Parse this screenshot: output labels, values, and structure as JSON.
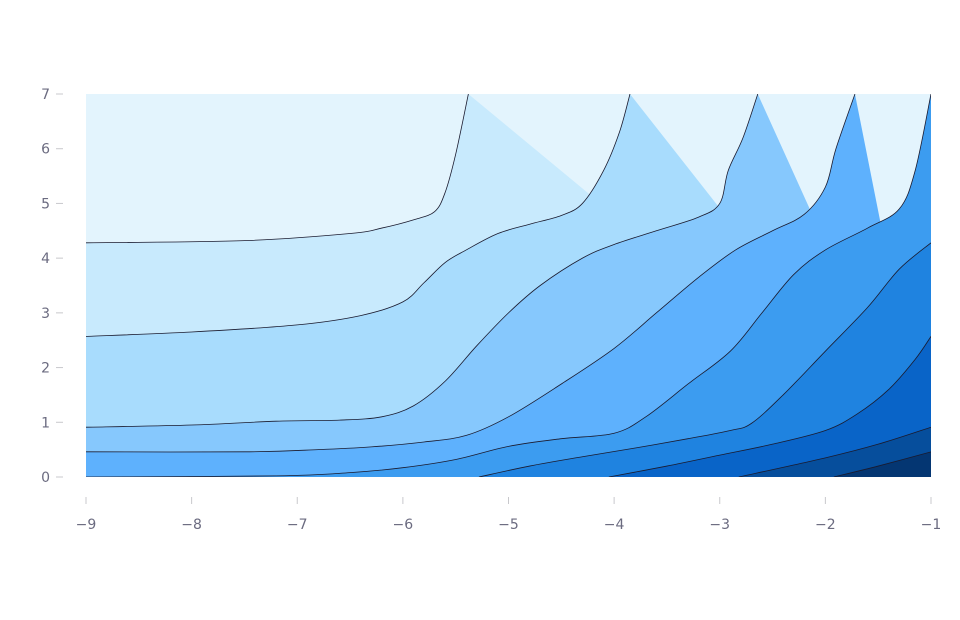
{
  "chart_data": {
    "type": "contour",
    "title": "",
    "xlabel": "",
    "ylabel": "",
    "xlim": [
      -9,
      -1
    ],
    "ylim": [
      0,
      7
    ],
    "x_ticks": [
      -9,
      -8,
      -7,
      -6,
      -5,
      -4,
      -3,
      -2,
      -1
    ],
    "y_ticks": [
      0,
      1,
      2,
      3,
      4,
      5,
      6,
      7
    ],
    "x_tick_labels": [
      "−9",
      "−8",
      "−7",
      "−6",
      "−5",
      "−4",
      "−3",
      "−2",
      "−1"
    ],
    "y_tick_labels": [
      "0",
      "1",
      "2",
      "3",
      "4",
      "5",
      "6",
      "7"
    ],
    "grid": false,
    "legend": "none",
    "colorscale": [
      "#e3f4fd",
      "#c8eafd",
      "#a8dcfd",
      "#86c8fd",
      "#5eb1fd",
      "#3c9cf0",
      "#1f83e0",
      "#0964c8",
      "#064e9c",
      "#043672"
    ],
    "contours": [
      {
        "level": 1,
        "points": [
          [
            -9,
            4.28
          ],
          [
            -7.5,
            4.32
          ],
          [
            -6.5,
            4.45
          ],
          [
            -6.2,
            4.55
          ],
          [
            -5.9,
            4.7
          ],
          [
            -5.7,
            4.85
          ],
          [
            -5.6,
            5.2
          ],
          [
            -5.5,
            5.9
          ],
          [
            -5.38,
            7
          ]
        ]
      },
      {
        "level": 2,
        "points": [
          [
            -9,
            2.57
          ],
          [
            -8,
            2.65
          ],
          [
            -7,
            2.78
          ],
          [
            -6.4,
            2.95
          ],
          [
            -6.0,
            3.2
          ],
          [
            -5.8,
            3.55
          ],
          [
            -5.6,
            3.92
          ],
          [
            -5.4,
            4.15
          ],
          [
            -5.1,
            4.45
          ],
          [
            -4.8,
            4.62
          ],
          [
            -4.5,
            4.78
          ],
          [
            -4.3,
            5.0
          ],
          [
            -4.1,
            5.6
          ],
          [
            -3.95,
            6.3
          ],
          [
            -3.85,
            7
          ]
        ]
      },
      {
        "level": 3,
        "points": [
          [
            -9,
            0.91
          ],
          [
            -8,
            0.95
          ],
          [
            -7.2,
            1.02
          ],
          [
            -6.6,
            1.04
          ],
          [
            -6.2,
            1.1
          ],
          [
            -5.9,
            1.3
          ],
          [
            -5.6,
            1.75
          ],
          [
            -5.3,
            2.4
          ],
          [
            -5.0,
            3.0
          ],
          [
            -4.7,
            3.5
          ],
          [
            -4.3,
            4.0
          ],
          [
            -4.0,
            4.25
          ],
          [
            -3.6,
            4.5
          ],
          [
            -3.2,
            4.75
          ],
          [
            -3.0,
            5.0
          ],
          [
            -2.92,
            5.6
          ],
          [
            -2.78,
            6.2
          ],
          [
            -2.64,
            7
          ]
        ]
      },
      {
        "level": 4,
        "points": [
          [
            -9,
            0.46
          ],
          [
            -7.5,
            0.46
          ],
          [
            -6.8,
            0.5
          ],
          [
            -6.3,
            0.55
          ],
          [
            -5.8,
            0.64
          ],
          [
            -5.4,
            0.76
          ],
          [
            -5.0,
            1.1
          ],
          [
            -4.5,
            1.7
          ],
          [
            -4.0,
            2.35
          ],
          [
            -3.6,
            3.0
          ],
          [
            -3.2,
            3.65
          ],
          [
            -2.85,
            4.15
          ],
          [
            -2.5,
            4.5
          ],
          [
            -2.2,
            4.8
          ],
          [
            -2.0,
            5.3
          ],
          [
            -1.9,
            6.0
          ],
          [
            -1.72,
            7
          ]
        ]
      },
      {
        "level": 5,
        "points": [
          [
            -9,
            0
          ],
          [
            -7.2,
            0.02
          ],
          [
            -6.5,
            0.08
          ],
          [
            -6.0,
            0.17
          ],
          [
            -5.5,
            0.32
          ],
          [
            -5.0,
            0.56
          ],
          [
            -4.5,
            0.7
          ],
          [
            -4.0,
            0.8
          ],
          [
            -3.7,
            1.1
          ],
          [
            -3.3,
            1.7
          ],
          [
            -2.9,
            2.3
          ],
          [
            -2.6,
            3.0
          ],
          [
            -2.3,
            3.7
          ],
          [
            -2.0,
            4.15
          ],
          [
            -1.6,
            4.55
          ],
          [
            -1.3,
            4.9
          ],
          [
            -1.15,
            5.6
          ],
          [
            -1.0,
            7
          ]
        ]
      },
      {
        "level": 6,
        "points": [
          [
            -5.28,
            0
          ],
          [
            -4.8,
            0.2
          ],
          [
            -4.3,
            0.37
          ],
          [
            -3.8,
            0.53
          ],
          [
            -3.3,
            0.7
          ],
          [
            -2.9,
            0.85
          ],
          [
            -2.7,
            0.98
          ],
          [
            -2.4,
            1.5
          ],
          [
            -2.0,
            2.3
          ],
          [
            -1.6,
            3.1
          ],
          [
            -1.3,
            3.8
          ],
          [
            -1.0,
            4.28
          ]
        ]
      },
      {
        "level": 7,
        "points": [
          [
            -4.05,
            0
          ],
          [
            -3.5,
            0.2
          ],
          [
            -3.0,
            0.4
          ],
          [
            -2.5,
            0.6
          ],
          [
            -2.0,
            0.85
          ],
          [
            -1.7,
            1.15
          ],
          [
            -1.4,
            1.6
          ],
          [
            -1.15,
            2.15
          ],
          [
            -1.0,
            2.57
          ]
        ]
      },
      {
        "level": 8,
        "points": [
          [
            -2.82,
            0
          ],
          [
            -2.0,
            0.35
          ],
          [
            -1.5,
            0.6
          ],
          [
            -1.0,
            0.91
          ]
        ]
      },
      {
        "level": 9,
        "points": [
          [
            -1.92,
            0
          ],
          [
            -1.5,
            0.2
          ],
          [
            -1.0,
            0.46
          ]
        ]
      }
    ]
  }
}
